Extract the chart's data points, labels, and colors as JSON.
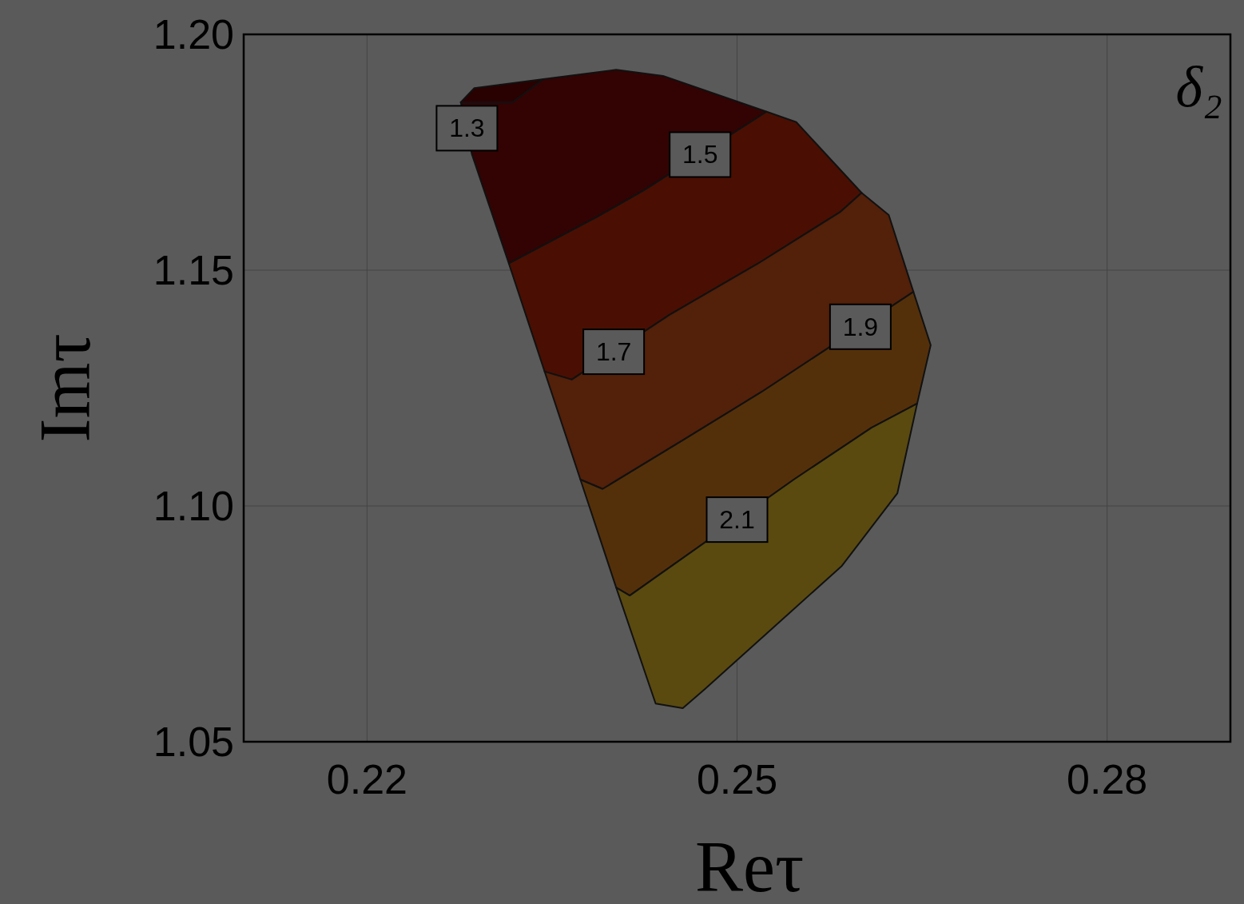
{
  "chart_data": {
    "type": "area",
    "title": "δ₂",
    "xlabel": "Reτ",
    "ylabel": "Imτ",
    "xlim": [
      0.21,
      0.29
    ],
    "ylim": [
      1.05,
      1.2
    ],
    "xticks": [
      0.22,
      0.25,
      0.28
    ],
    "yticks": [
      1.05,
      {
        "value": 1.1,
        "label": "1.10"
      },
      1.15,
      {
        "value": 1.2,
        "label": "1.20"
      }
    ],
    "grid": true,
    "series": [
      {
        "color": "#290101",
        "x": [
          0.2276,
          0.2287,
          0.2343,
          0.2318
        ],
        "values": [
          1.1856,
          1.1886,
          1.1905,
          1.1856
        ]
      },
      {
        "color": "#330303",
        "x": [
          0.2276,
          0.2318,
          0.2343,
          0.2402,
          0.244,
          0.2524,
          0.2425,
          0.2388,
          0.2315,
          0.2285
        ],
        "values": [
          1.1856,
          1.1856,
          1.1905,
          1.1925,
          1.1912,
          1.1836,
          1.167,
          1.1615,
          1.1514,
          1.1746
        ]
      },
      {
        "color": "#4a0f02",
        "x": [
          0.2315,
          0.2388,
          0.2425,
          0.2524,
          0.2548,
          0.2601,
          0.2584,
          0.2517,
          0.2445,
          0.2366,
          0.2344
        ],
        "values": [
          1.1514,
          1.1615,
          1.167,
          1.1836,
          1.1814,
          1.1664,
          1.1624,
          1.1514,
          1.1405,
          1.1268,
          1.1285
        ]
      },
      {
        "color": "#53200a",
        "x": [
          0.2344,
          0.2366,
          0.2445,
          0.2517,
          0.2584,
          0.2601,
          0.2623,
          0.2643,
          0.252,
          0.2457,
          0.2391,
          0.2373
        ],
        "values": [
          1.1285,
          1.1268,
          1.1405,
          1.1514,
          1.1624,
          1.1664,
          1.1617,
          1.1454,
          1.1242,
          1.1141,
          1.1036,
          1.1056
        ]
      },
      {
        "color": "#54300a",
        "x": [
          0.2373,
          0.2391,
          0.2457,
          0.252,
          0.2643,
          0.2657,
          0.2646,
          0.2609,
          0.2546,
          0.2413,
          0.2402
        ],
        "values": [
          1.1056,
          1.1036,
          1.1141,
          1.1242,
          1.1454,
          1.1341,
          1.1217,
          1.1166,
          1.1056,
          1.081,
          1.0827
        ]
      },
      {
        "color": "#5a4a10",
        "x": [
          0.2402,
          0.2413,
          0.2546,
          0.2609,
          0.2646,
          0.263,
          0.2585,
          0.2474,
          0.2456,
          0.2434,
          0.2429
        ],
        "values": [
          1.0827,
          1.081,
          1.1056,
          1.1166,
          1.1217,
          1.1027,
          1.0873,
          1.0612,
          1.0571,
          1.0581,
          1.0619
        ]
      }
    ],
    "annotations": [
      {
        "text": "1.3",
        "x": 0.2281,
        "y": 1.1801
      },
      {
        "text": "1.5",
        "x": 0.247,
        "y": 1.1745
      },
      {
        "text": "1.7",
        "x": 0.24,
        "y": 1.1327
      },
      {
        "text": "1.9",
        "x": 0.26,
        "y": 1.138
      },
      {
        "text": "2.1",
        "x": 0.25,
        "y": 1.0971
      }
    ]
  }
}
